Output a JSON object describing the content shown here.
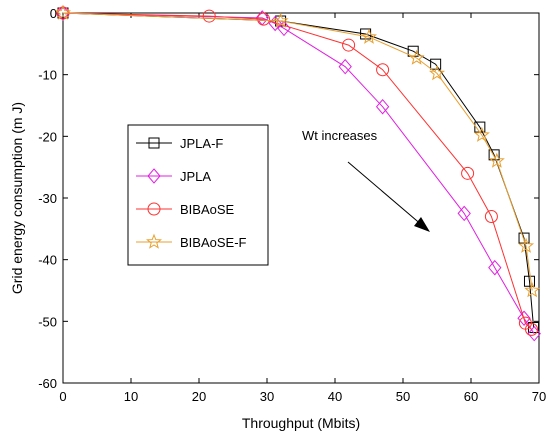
{
  "chart_data": {
    "type": "line",
    "title": "",
    "xlabel": "Throughput (Mbits)",
    "ylabel": "Grid energy consumption (m J)",
    "xlim": [
      0,
      70
    ],
    "ylim": [
      -60,
      0
    ],
    "xticks": [
      0,
      10,
      20,
      30,
      40,
      50,
      60,
      70
    ],
    "yticks": [
      0,
      -10,
      -20,
      -30,
      -40,
      -50,
      -60
    ],
    "grid": false,
    "legend_position": "middle-left",
    "annotation": {
      "text": "Wt increases"
    },
    "series": [
      {
        "name": "JPLA-F",
        "color": "#000000",
        "marker": "square",
        "x": [
          0,
          32,
          44.5,
          51.5,
          54.8,
          61.3,
          63.4,
          67.8,
          68.6,
          69.2
        ],
        "y": [
          0,
          -1.3,
          -3.4,
          -6.2,
          -8.3,
          -18.5,
          -23,
          -36.5,
          -43.5,
          -51
        ]
      },
      {
        "name": "JPLA",
        "color": "#e020e0",
        "marker": "diamond",
        "x": [
          0,
          29.3,
          31.2,
          32.5,
          41.5,
          47,
          59,
          63.5,
          67.8,
          69.3
        ],
        "y": [
          0,
          -0.8,
          -1.7,
          -2.5,
          -8.7,
          -15.2,
          -32.5,
          -41.3,
          -49.5,
          -52
        ]
      },
      {
        "name": "BIBAoSE",
        "color": "#ff3030",
        "marker": "circle",
        "x": [
          0,
          21.5,
          29.5,
          42,
          47,
          59.5,
          63,
          68,
          68.9
        ],
        "y": [
          0,
          -0.5,
          -1,
          -5.2,
          -9.2,
          -26,
          -33,
          -50.3,
          -51.3
        ]
      },
      {
        "name": "BIBAoSE-F",
        "color": "#e8a030",
        "marker": "star",
        "x": [
          0,
          32,
          45,
          52,
          55,
          61.6,
          63.8,
          68.1,
          69
        ],
        "y": [
          0,
          -1.3,
          -3.9,
          -7.3,
          -9.8,
          -19.8,
          -24,
          -37.8,
          -45
        ]
      }
    ]
  }
}
